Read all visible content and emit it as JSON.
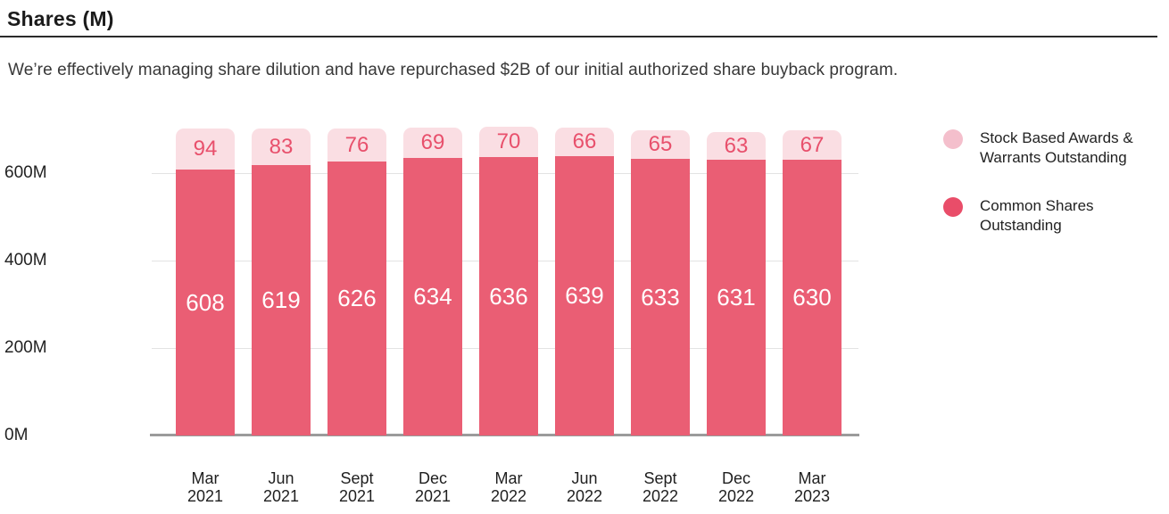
{
  "page": {
    "title": "Shares (M)",
    "subtitle": "We’re effectively managing share dilution and have repurchased $2B of our initial authorized share buyback program."
  },
  "chart_data": {
    "type": "bar",
    "stacked": true,
    "title": "Shares (M)",
    "xlabel": "",
    "ylabel": "Shares (M)",
    "ylim": [
      0,
      720
    ],
    "grid": true,
    "legend_position": "right",
    "categories": [
      {
        "line1": "Mar",
        "line2": "2021"
      },
      {
        "line1": "Jun",
        "line2": "2021"
      },
      {
        "line1": "Sept",
        "line2": "2021"
      },
      {
        "line1": "Dec",
        "line2": "2021"
      },
      {
        "line1": "Mar",
        "line2": "2022"
      },
      {
        "line1": "Jun",
        "line2": "2022"
      },
      {
        "line1": "Sept",
        "line2": "2022"
      },
      {
        "line1": "Dec",
        "line2": "2022"
      },
      {
        "line1": "Mar",
        "line2": "2023"
      }
    ],
    "series": [
      {
        "name": "Common Shares Outstanding",
        "color": "#EA5E74",
        "label_color": "#FFFFFF",
        "values": [
          608,
          619,
          626,
          634,
          636,
          639,
          633,
          631,
          630
        ]
      },
      {
        "name": "Stock Based Awards & Warrants Outstanding",
        "color": "#FADEE3",
        "label_color": "#E8506C",
        "values": [
          94,
          83,
          76,
          69,
          70,
          66,
          65,
          63,
          67
        ]
      }
    ],
    "yticks": [
      {
        "label": "0M",
        "value": 0
      },
      {
        "label": "200M",
        "value": 200
      },
      {
        "label": "400M",
        "value": 400
      },
      {
        "label": "600M",
        "value": 600
      }
    ],
    "legend": [
      {
        "label": "Stock Based Awards & Warrants Outstanding",
        "label_lines": [
          "Stock Based Awards &",
          "Warrants Outstanding"
        ],
        "swatch_color": "#F4BFCC"
      },
      {
        "label": "Common Shares Outstanding",
        "label_lines": [
          "Common Shares",
          "Outstanding"
        ],
        "swatch_color": "#E94D69"
      }
    ],
    "colors": {
      "gridline": "#E3E3E3",
      "axis_line": "#9B9B9B"
    }
  }
}
